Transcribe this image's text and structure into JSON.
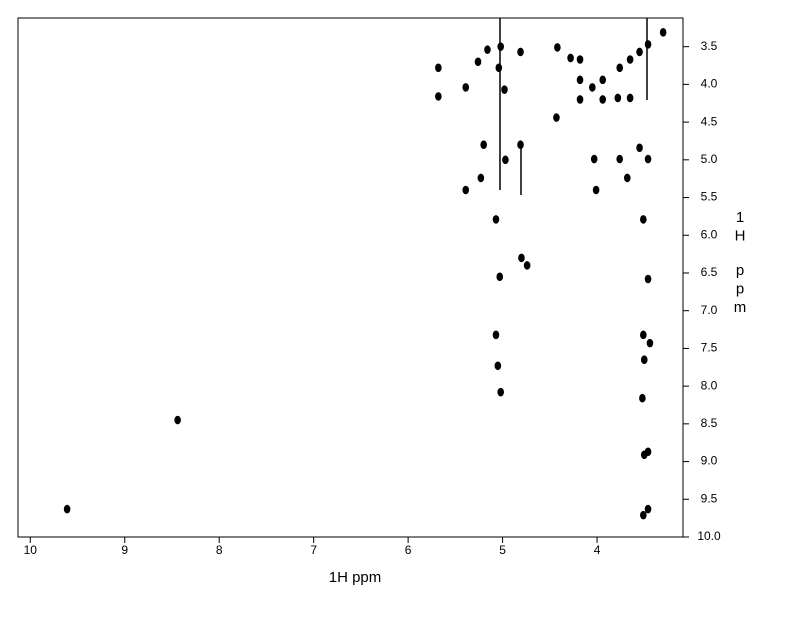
{
  "chart_data": {
    "type": "scatter",
    "xlabel": "1H ppm",
    "ylabel": "1H ppm",
    "x": [
      9.61,
      8.44,
      5.02,
      4.81,
      5.04,
      5.26,
      5.16,
      5.68,
      5.68,
      5.39,
      4.98,
      4.42,
      4.28,
      4.18,
      4.18,
      4.18,
      4.05,
      3.94,
      3.94,
      3.78,
      3.65,
      3.76,
      3.65,
      3.55,
      3.46,
      3.3,
      4.43,
      4.81,
      4.97,
      5.2,
      4.03,
      3.76,
      3.46,
      3.55,
      5.23,
      3.68,
      4.01,
      5.39,
      5.07,
      3.51,
      4.8,
      4.74,
      5.03,
      3.46,
      5.07,
      3.51,
      3.44,
      3.5,
      5.05,
      5.02,
      3.52,
      3.5,
      3.46,
      3.51,
      3.46
    ],
    "y": [
      9.63,
      8.45,
      3.5,
      3.57,
      3.78,
      3.7,
      3.54,
      3.78,
      4.16,
      4.04,
      4.07,
      3.51,
      3.65,
      3.67,
      3.94,
      4.2,
      4.04,
      3.94,
      4.2,
      4.18,
      4.18,
      3.78,
      3.67,
      3.57,
      3.47,
      3.31,
      4.44,
      4.8,
      5.0,
      4.8,
      4.99,
      4.99,
      4.99,
      4.84,
      5.24,
      5.24,
      5.4,
      5.4,
      5.79,
      5.79,
      6.3,
      6.4,
      6.55,
      6.58,
      7.32,
      7.32,
      7.43,
      7.65,
      7.73,
      8.08,
      8.16,
      8.91,
      8.87,
      9.71,
      9.63
    ],
    "color": "#000000",
    "xlim": [
      10.13,
      3.09
    ],
    "ylim": [
      3.12,
      10.0
    ],
    "xticks": [
      10,
      9,
      8,
      7,
      6,
      5,
      4
    ],
    "yticks": [
      3.5,
      {
        "value": 4,
        "label": "4.0"
      },
      4.5,
      {
        "value": 5,
        "label": "5.0"
      },
      5.5,
      {
        "value": 6,
        "label": "6.0"
      },
      6.5,
      {
        "value": 7,
        "label": "7.0"
      },
      7.5,
      {
        "value": 8,
        "label": "8.0"
      },
      8.5,
      {
        "value": 9,
        "label": "9.0"
      },
      9.5,
      {
        "value": 10,
        "label": "10.0"
      }
    ]
  }
}
